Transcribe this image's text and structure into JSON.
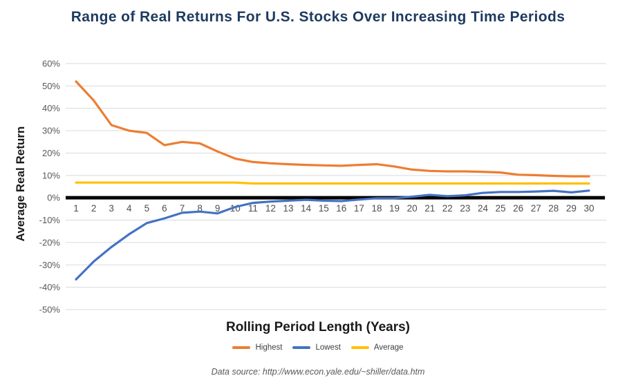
{
  "title": "Range of Real Returns For U.S. Stocks Over Increasing Time Periods",
  "y_axis_title": "Average Real Return",
  "x_axis_title": "Rolling Period Length (Years)",
  "source_note": "Data source: http://www.econ.yale.edu/~shiller/data.htm",
  "colors": {
    "title_text": "#1e3a5f",
    "grid_line": "#d9d9d9",
    "zero_line": "#000000",
    "y_tick_text": "#595959",
    "x_tick_text": "#4d4d4d",
    "legend_text": "#3f3f3f",
    "source_text": "#595959"
  },
  "chart_data": {
    "type": "line",
    "title": "Range of Real Returns For U.S. Stocks Over Increasing Time Periods",
    "xlabel": "Rolling Period Length (Years)",
    "ylabel": "Average Real Return",
    "x": [
      1,
      2,
      3,
      4,
      5,
      6,
      7,
      8,
      9,
      10,
      11,
      12,
      13,
      14,
      15,
      16,
      17,
      18,
      19,
      20,
      21,
      22,
      23,
      24,
      25,
      26,
      27,
      28,
      29,
      30
    ],
    "ylim": [
      -50,
      60
    ],
    "ytick_step": 10,
    "ytick_suffix": "%",
    "grid": true,
    "legend_position": "bottom",
    "series": [
      {
        "name": "Highest",
        "color": "#ED7D31",
        "values": [
          52,
          43.5,
          32.5,
          30,
          29,
          23.5,
          25,
          24.3,
          20.7,
          17.5,
          16,
          15.4,
          15,
          14.7,
          14.5,
          14.3,
          14.7,
          15,
          14,
          12.6,
          12,
          11.8,
          11.8,
          11.6,
          11.3,
          10.3,
          10.1,
          9.8,
          9.6,
          9.6
        ]
      },
      {
        "name": "Lowest",
        "color": "#4472C4",
        "values": [
          -36.5,
          -28.5,
          -22,
          -16.3,
          -11.3,
          -9.2,
          -6.7,
          -6.2,
          -7,
          -4.1,
          -2.3,
          -1.7,
          -1.3,
          -0.9,
          -1.3,
          -1.5,
          -0.8,
          -0.2,
          -0.2,
          0.5,
          1.3,
          0.7,
          1.1,
          2.2,
          2.6,
          2.6,
          2.8,
          3.1,
          2.4,
          3.2
        ]
      },
      {
        "name": "Average",
        "color": "#FFC000",
        "values": [
          6.8,
          6.8,
          6.8,
          6.8,
          6.8,
          6.8,
          6.8,
          6.8,
          6.8,
          6.8,
          6.4,
          6.4,
          6.4,
          6.4,
          6.4,
          6.4,
          6.4,
          6.4,
          6.4,
          6.4,
          6.4,
          6.4,
          6.4,
          6.4,
          6.4,
          6.4,
          6.4,
          6.4,
          6.4,
          6.4
        ]
      }
    ]
  }
}
